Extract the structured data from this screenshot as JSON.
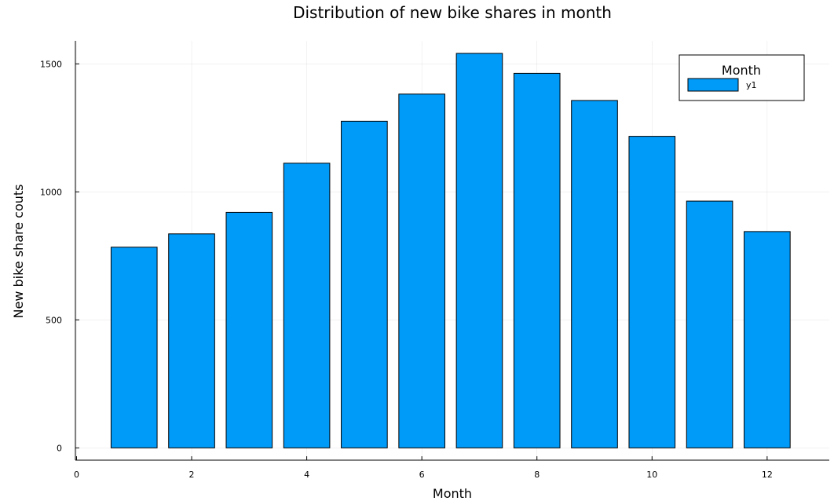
{
  "chart_data": {
    "type": "bar",
    "title": "Distribution of new bike shares in month",
    "xlabel": "Month",
    "ylabel": "New bike share couts",
    "x": [
      1,
      2,
      3,
      4,
      5,
      6,
      7,
      8,
      9,
      10,
      11,
      12
    ],
    "series": [
      {
        "name": "y1",
        "values": [
          784,
          836,
          920,
          1112,
          1276,
          1382,
          1541,
          1463,
          1357,
          1217,
          964,
          845
        ],
        "color": "#009AF9"
      }
    ],
    "xlim": [
      -0.02,
      13.08
    ],
    "ylim": [
      -48,
      1590
    ],
    "xticks": [
      0,
      2,
      4,
      6,
      8,
      10,
      12
    ],
    "yticks": [
      0,
      500,
      1000,
      1500
    ],
    "xtick_labels": [
      "0",
      "2",
      "4",
      "6",
      "8",
      "10",
      "12"
    ],
    "ytick_labels": [
      "0",
      "500",
      "1000",
      "1500"
    ],
    "bar_width": 0.8,
    "grid": true,
    "legend": {
      "title": "Month",
      "placement": "top-right"
    }
  }
}
